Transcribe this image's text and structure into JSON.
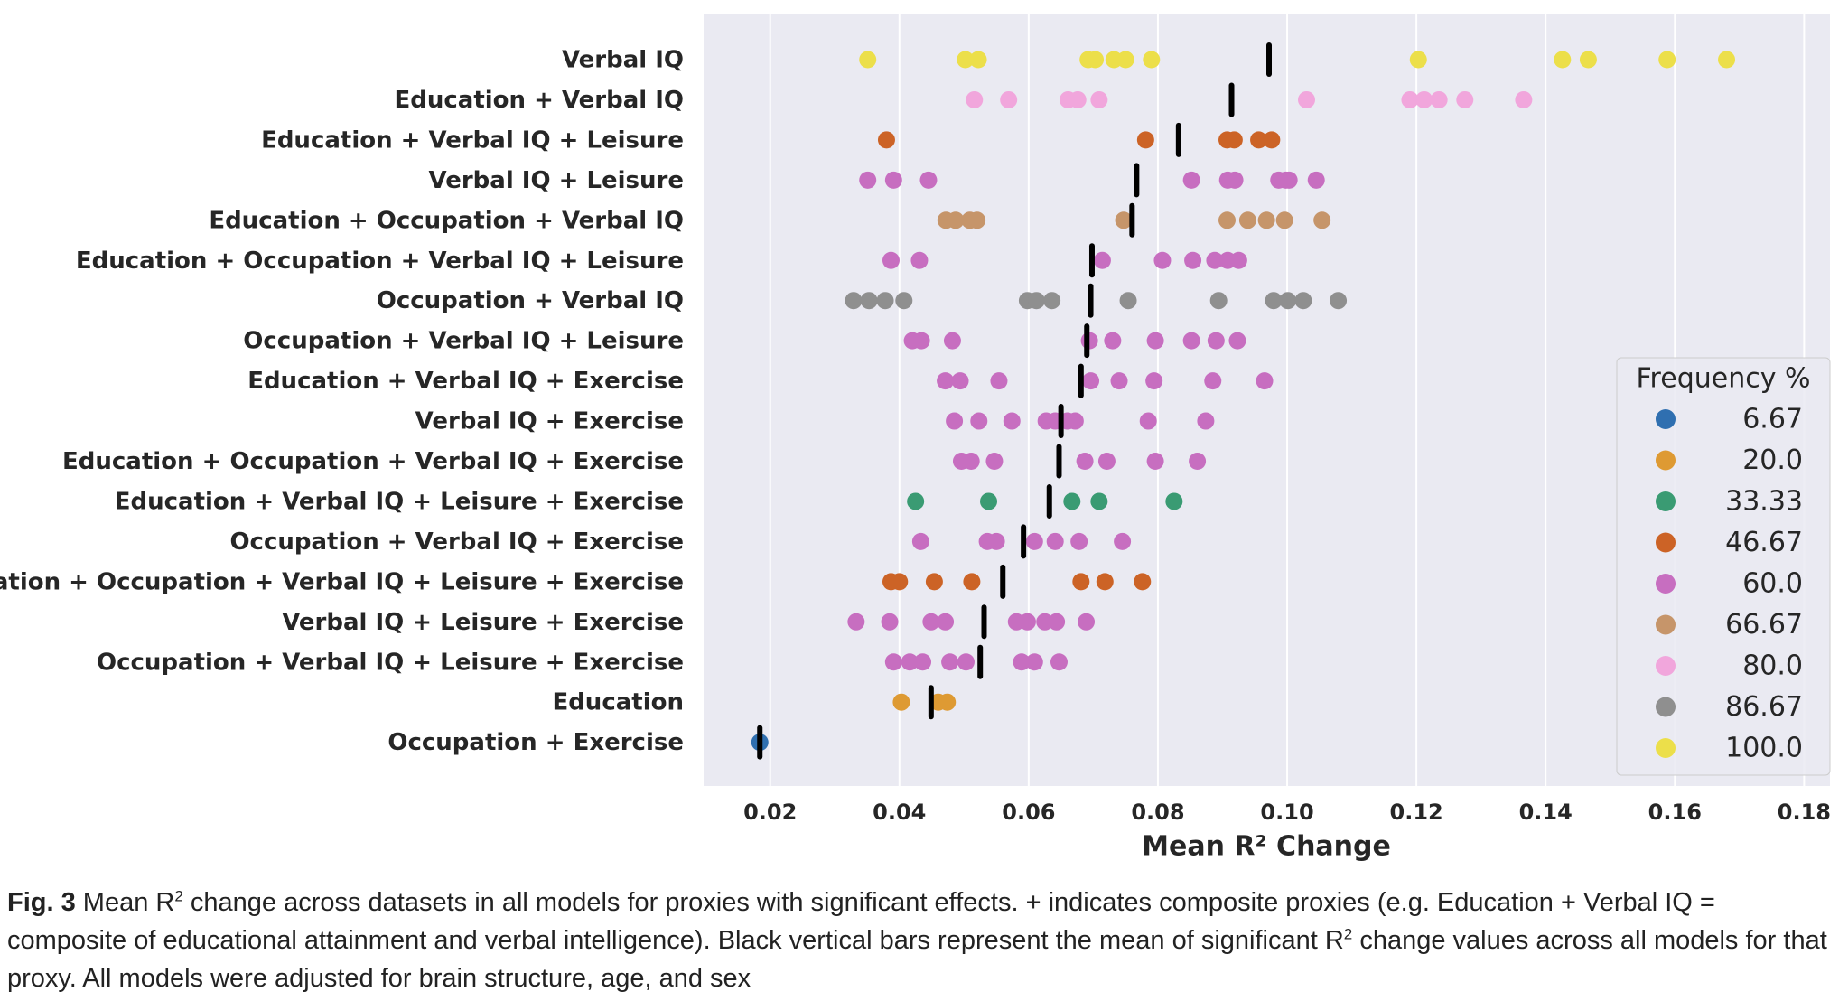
{
  "chart_data": {
    "type": "strip",
    "xlabel": "Mean R² Change",
    "xlim": [
      0.0097,
      0.184
    ],
    "xticks": [
      0.02,
      0.04,
      0.06,
      0.08,
      {
        "value": 0.1,
        "label": "0.10"
      },
      0.12,
      0.14,
      0.16,
      0.18
    ],
    "grid": true,
    "legend": {
      "title": "Frequency %",
      "position": "lower right",
      "items": [
        {
          "value": 6.67,
          "label": "6.67",
          "color": "#2f6fb0"
        },
        {
          "value": 20,
          "label": "20.0",
          "color": "#de9a33"
        },
        {
          "value": 33.33,
          "label": "33.33",
          "color": "#3a9b73"
        },
        {
          "value": 46.67,
          "label": "46.67",
          "color": "#cc6326"
        },
        {
          "value": 60,
          "label": "60.0",
          "color": "#c76ec0"
        },
        {
          "value": 66.67,
          "label": "66.67",
          "color": "#c6956a"
        },
        {
          "value": 80,
          "label": "80.0",
          "color": "#f1a6dc"
        },
        {
          "value": 86.67,
          "label": "86.67",
          "color": "#8f8f8f"
        },
        {
          "value": 100,
          "label": "100.0",
          "color": "#ecdf4a"
        }
      ]
    },
    "categories": [
      "Verbal IQ",
      "Education + Verbal IQ",
      "Education + Verbal IQ + Leisure",
      "Verbal IQ + Leisure",
      "Education + Occupation + Verbal IQ",
      "Education + Occupation + Verbal IQ + Leisure",
      "Occupation + Verbal IQ",
      "Occupation + Verbal IQ + Leisure",
      "Education + Verbal IQ + Exercise",
      "Verbal IQ + Exercise",
      "Education + Occupation + Verbal IQ + Exercise",
      "Education + Verbal IQ + Leisure + Exercise",
      "Occupation + Verbal IQ + Exercise",
      "Education + Occupation + Verbal IQ + Leisure + Exercise",
      "Verbal IQ + Leisure + Exercise",
      "Occupation + Verbal IQ + Leisure + Exercise",
      "Education",
      "Occupation + Exercise"
    ],
    "frequency": [
      100,
      80,
      46.67,
      60,
      66.67,
      60,
      86.67,
      60,
      60,
      60,
      60,
      33.33,
      60,
      46.67,
      60,
      60,
      20,
      6.67
    ],
    "means": [
      0.0972,
      0.0914,
      0.0832,
      0.0767,
      0.076,
      0.0698,
      0.0696,
      0.069,
      0.0681,
      0.065,
      0.0647,
      0.0632,
      0.0592,
      0.056,
      0.0531,
      0.0525,
      0.0449,
      0.0184
    ],
    "values": [
      [
        0.0351,
        0.0502,
        0.0522,
        0.0692,
        0.0703,
        0.0732,
        0.075,
        0.079,
        0.1203,
        0.1426,
        0.1466,
        0.1588,
        0.168
      ],
      [
        0.0516,
        0.0569,
        0.0661,
        0.0676,
        0.0709,
        0.103,
        0.119,
        0.1212,
        0.1235,
        0.1275,
        0.1366
      ],
      [
        0.038,
        0.0781,
        0.0907,
        0.0918,
        0.0956,
        0.0976
      ],
      [
        0.0351,
        0.0391,
        0.0445,
        0.0852,
        0.0908,
        0.0919,
        0.0987,
        0.0998,
        0.1003,
        0.1045
      ],
      [
        0.0472,
        0.0487,
        0.0509,
        0.052,
        0.0747,
        0.0907,
        0.0939,
        0.0968,
        0.0996,
        0.1054
      ],
      [
        0.0387,
        0.0431,
        0.0714,
        0.0807,
        0.0854,
        0.0888,
        0.0908,
        0.0925
      ],
      [
        0.0329,
        0.0353,
        0.0378,
        0.0407,
        0.0598,
        0.0612,
        0.0636,
        0.0754,
        0.0894,
        0.0979,
        0.1001,
        0.1025,
        0.1079
      ],
      [
        0.042,
        0.0434,
        0.0482,
        0.0694,
        0.073,
        0.0796,
        0.0852,
        0.089,
        0.0923
      ],
      [
        0.0471,
        0.0494,
        0.0554,
        0.0696,
        0.074,
        0.0794,
        0.0885,
        0.0965
      ],
      [
        0.0485,
        0.0523,
        0.0574,
        0.0627,
        0.0641,
        0.066,
        0.0672,
        0.0785,
        0.0874
      ],
      [
        0.0496,
        0.0511,
        0.0547,
        0.0687,
        0.0721,
        0.0796,
        0.0861
      ],
      [
        0.0425,
        0.0538,
        0.0667,
        0.0709,
        0.0825
      ],
      [
        0.0433,
        0.0536,
        0.055,
        0.0609,
        0.0641,
        0.0678,
        0.0745
      ],
      [
        0.0387,
        0.04,
        0.0454,
        0.0512,
        0.0681,
        0.0718,
        0.0776
      ],
      [
        0.0333,
        0.0385,
        0.0449,
        0.0471,
        0.0581,
        0.0598,
        0.0625,
        0.0643,
        0.0689
      ],
      [
        0.0391,
        0.0416,
        0.0436,
        0.0478,
        0.0503,
        0.0589,
        0.0609,
        0.0647
      ],
      [
        0.0403,
        0.046,
        0.0474
      ],
      [
        0.0184
      ]
    ]
  },
  "caption": {
    "label": "Fig. 3",
    "parts": [
      " Mean R",
      "2",
      " change across datasets in all models for proxies with significant effects. + indicates composite proxies (e.g. Education + Verbal IQ = composite of educational attainment and verbal intelligence). Black vertical bars represent the mean of significant R",
      "2",
      " change values across all models for that proxy. All models were adjusted for brain structure, age, and sex"
    ]
  }
}
